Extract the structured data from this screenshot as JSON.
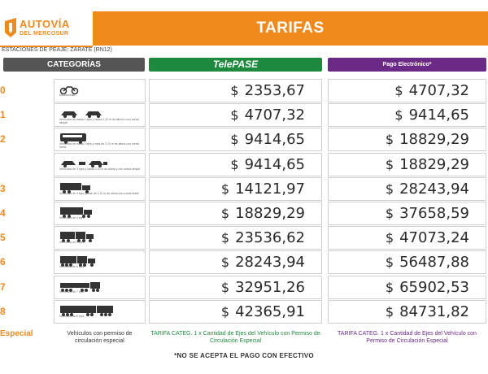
{
  "brand": {
    "name": "AUTOVÍA",
    "tagline": "DEL MERCOSUR",
    "color": "#f08a1c"
  },
  "title": "TARIFAS",
  "subtitle": "ESTACIONES DE PEAJE: ZÁRATE (RN12)",
  "headers": {
    "categorias": "CATEGORÍAS",
    "telepase": "TelePASE",
    "electronico": "Pago Electrónico*"
  },
  "rows": [
    {
      "cat": "0",
      "icon": "motorcycle-icon",
      "desc": "Motocicletas",
      "telepase": "2353,67",
      "electronico": "4707,32"
    },
    {
      "cat": "1",
      "icon": "car-icon",
      "desc": "Vehículos de hasta 2 ejes y hasta 2,10 m de altura o con rueda simple",
      "telepase": "4707,32",
      "electronico": "9414,65"
    },
    {
      "cat": "2",
      "icon": "bus-icon",
      "desc": "Vehículos de hasta 2 ejes y más de 2,10 m de altura con rueda doble",
      "telepase": "9414,65",
      "electronico": "18829,29"
    },
    {
      "cat": "",
      "icon": "car-trailer-icon",
      "desc": "Vehículos de 3 ejes y hasta 2,10 m de altura y con rueda simple",
      "telepase": "9414,65",
      "electronico": "18829,29"
    },
    {
      "cat": "3",
      "icon": "truck-3-axle-icon",
      "desc": "Vehículos de 3 ejes y más de 2,10 m de altura con rueda doble",
      "telepase": "14121,97",
      "electronico": "28243,94"
    },
    {
      "cat": "4",
      "icon": "truck-4-axle-icon",
      "desc": "Vehículos de 4 ejes",
      "telepase": "18829,29",
      "electronico": "37658,59"
    },
    {
      "cat": "5",
      "icon": "truck-5-axle-icon",
      "desc": "Vehículos de 5 ejes",
      "telepase": "23536,62",
      "electronico": "47073,24"
    },
    {
      "cat": "6",
      "icon": "truck-6-axle-icon",
      "desc": "Vehículos de 6 ejes",
      "telepase": "28243,94",
      "electronico": "56487,88"
    },
    {
      "cat": "7",
      "icon": "truck-7-axle-icon",
      "desc": "Vehículos de 7 ejes",
      "telepase": "32951,26",
      "electronico": "65902,53"
    },
    {
      "cat": "8",
      "icon": "truck-8-axle-icon",
      "desc": "Vehículos de 8 ejes",
      "telepase": "42365,91",
      "electronico": "84731,82"
    }
  ],
  "currency": "$",
  "special": {
    "cat": "Especial",
    "desc": "Vehículos con permiso de circulación especial",
    "telepase": "TARIFA CATEG. 1 x Cantidad de Ejes del Vehículo con Permiso de Circulación Especial",
    "electronico": "TARIFA CATEG. 1 x Cantidad de Ejes del Vehículo con Permiso de Circulación Especial"
  },
  "footnote": "*NO SE ACEPTA EL PAGO CON EFECTIVO",
  "colors": {
    "orange": "#f08a1c",
    "green": "#1e8a3e",
    "purple": "#6b2a86",
    "gray": "#555555"
  }
}
